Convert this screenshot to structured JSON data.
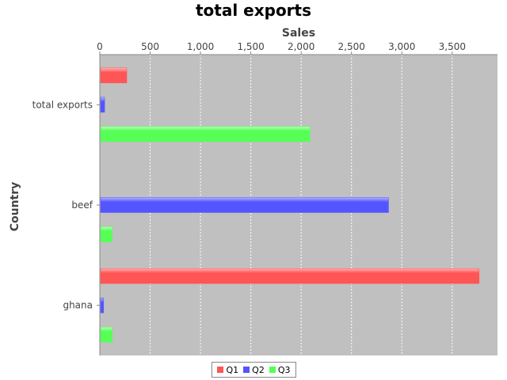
{
  "chart_data": {
    "type": "bar",
    "orientation": "horizontal",
    "title": "total exports",
    "xlabel": "Country",
    "ylabel": "Sales",
    "value_axis_position": "top",
    "categories": [
      "total exports",
      "beef",
      "ghana"
    ],
    "series": [
      {
        "name": "Q1",
        "color": "#ff5555",
        "values": [
          260,
          0,
          3760
        ]
      },
      {
        "name": "Q2",
        "color": "#5555ff",
        "values": [
          40,
          2860,
          30
        ]
      },
      {
        "name": "Q3",
        "color": "#55ff55",
        "values": [
          2080,
          115,
          115
        ]
      }
    ],
    "value_ticks": [
      0,
      500,
      1000,
      1500,
      2000,
      2500,
      3000,
      3500
    ],
    "value_tick_labels": [
      "0",
      "500",
      "1,000",
      "1,500",
      "2,000",
      "2,500",
      "3,000",
      "3,500"
    ],
    "ylim": [
      0,
      3950
    ],
    "grid": true,
    "plot_background": "#c0c0c0",
    "legend_position": "bottom"
  }
}
